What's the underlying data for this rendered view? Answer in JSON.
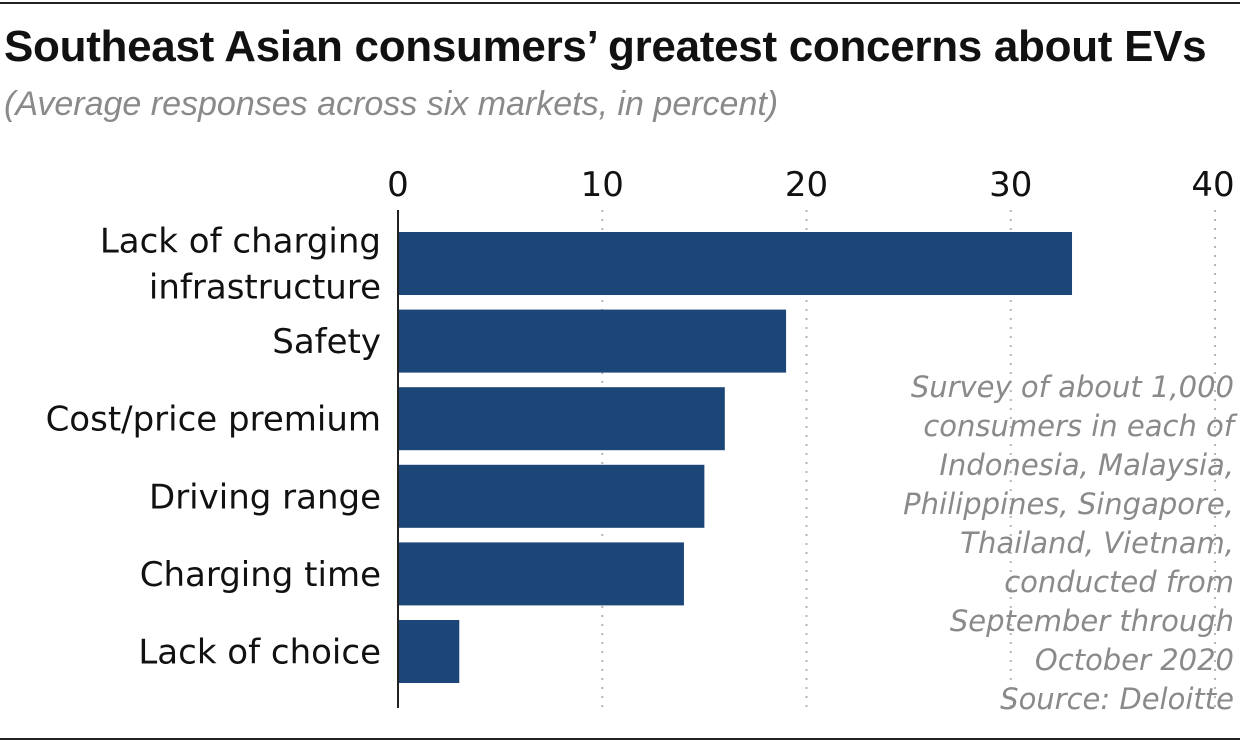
{
  "title": "Southeast Asian consumers’ greatest concerns about EVs",
  "subtitle": "(Average responses across six markets, in percent)",
  "note": [
    "Survey of about 1,000",
    "consumers in each of",
    "Indonesia, Malaysia,",
    "Philippines, Singapore,",
    "Thailand, Vietnam,",
    "conducted from",
    "September through",
    "October 2020"
  ],
  "source": "Source: Deloitte",
  "colors": {
    "bar": "#1b4677",
    "grid": "#b5b5b5",
    "axis": "#222222"
  },
  "chart_data": {
    "type": "bar",
    "orientation": "horizontal",
    "categories": [
      "Lack of charging infrastructure",
      "Safety",
      "Cost/price premium",
      "Driving range",
      "Charging time",
      "Lack of choice"
    ],
    "category_label_lines": [
      [
        "Lack of charging",
        "infrastructure"
      ],
      [
        "Safety"
      ],
      [
        "Cost/price premium"
      ],
      [
        "Driving range"
      ],
      [
        "Charging time"
      ],
      [
        "Lack of choice"
      ]
    ],
    "values": [
      33,
      19,
      16,
      15,
      14,
      3
    ],
    "xlim": [
      0,
      40
    ],
    "xticks": [
      0,
      10,
      20,
      30,
      40
    ],
    "grid": "vertical dotted",
    "xlabel": "",
    "ylabel": ""
  }
}
